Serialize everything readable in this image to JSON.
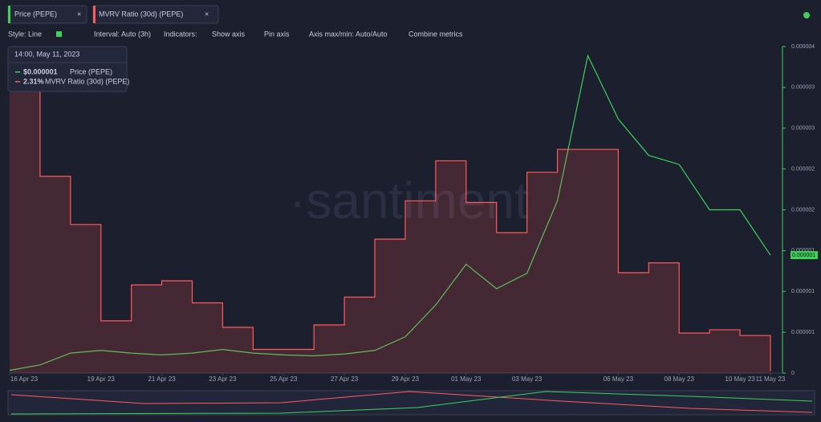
{
  "tabs": [
    "Price (PEPE)",
    "MVRV Ratio (30d) (PEPE)"
  ],
  "toolbar": {
    "style": "Style: Line",
    "interval": "Interval: Auto (3h)",
    "indicators": "Indicators:",
    "show_axis": "Show axis",
    "pin_axis": "Pin axis",
    "axis_range": "Axis max/min: Auto/Auto",
    "combine": "Combine metrics"
  },
  "tooltip": {
    "time": "14:00, May 11, 2023",
    "rows": [
      {
        "value": "$0.000001",
        "name": "Price (PEPE)"
      },
      {
        "value": "2.31%",
        "name": "MVRV Ratio (30d) (PEPE)"
      }
    ]
  },
  "watermark": "·santiment",
  "chart_data": {
    "type": "line",
    "x": [
      "2023-04-16",
      "2023-04-17",
      "2023-04-18",
      "2023-04-19",
      "2023-04-20",
      "2023-04-21",
      "2023-04-22",
      "2023-04-23",
      "2023-04-24",
      "2023-04-25",
      "2023-04-26",
      "2023-04-27",
      "2023-04-28",
      "2023-04-29",
      "2023-04-30",
      "2023-05-01",
      "2023-05-02",
      "2023-05-03",
      "2023-05-04",
      "2023-05-05",
      "2023-05-06",
      "2023-05-07",
      "2023-05-08",
      "2023-05-09",
      "2023-05-10",
      "2023-05-11"
    ],
    "xlim": [
      "2023-04-16",
      "2023-05-11"
    ],
    "xticks": [
      {
        "value": "2023-04-16",
        "label": "16 Apr 23"
      },
      {
        "value": "2023-04-19",
        "label": "19 Apr 23"
      },
      {
        "value": "2023-04-21",
        "label": "21 Apr 23"
      },
      {
        "value": "2023-04-23",
        "label": "23 Apr 23"
      },
      {
        "value": "2023-04-25",
        "label": "25 Apr 23"
      },
      {
        "value": "2023-04-27",
        "label": "27 Apr 23"
      },
      {
        "value": "2023-04-29",
        "label": "29 Apr 23"
      },
      {
        "value": "2023-05-01",
        "label": "01 May 23"
      },
      {
        "value": "2023-05-03",
        "label": "03 May 23"
      },
      {
        "value": "2023-05-06",
        "label": "06 May 23"
      },
      {
        "value": "2023-05-08",
        "label": "08 May 23"
      },
      {
        "value": "2023-05-10",
        "label": "10 May 23"
      },
      {
        "value": "2023-05-11",
        "label": "11 May 23"
      }
    ],
    "ylim": [
      1e-07,
      3.7e-06
    ],
    "yticks": [
      {
        "value": 1e-07,
        "label": "0"
      },
      {
        "value": 5.5e-07,
        "label": "0.000001"
      },
      {
        "value": 1e-06,
        "label": "0.000001"
      },
      {
        "value": 1.45e-06,
        "label": "0.000001"
      },
      {
        "value": 1.9e-06,
        "label": "0.000002"
      },
      {
        "value": 2.35e-06,
        "label": "0.000002"
      },
      {
        "value": 2.8e-06,
        "label": "0.000003"
      },
      {
        "value": 3.25e-06,
        "label": "0.000003"
      },
      {
        "value": 3.7e-06,
        "label": "0.000004"
      }
    ],
    "y2lim": [
      0,
      400
    ],
    "last_price_label": "0.000001",
    "series": [
      {
        "name": "Price (PEPE)",
        "color": "#3fd15a",
        "values": [
          1.3e-07,
          1.9e-07,
          3.2e-07,
          3.5e-07,
          3.2e-07,
          3e-07,
          3.2e-07,
          3.6e-07,
          3.2e-07,
          3e-07,
          2.9e-07,
          3.1e-07,
          3.5e-07,
          5e-07,
          8.5e-07,
          1.3e-06,
          1.03e-06,
          1.2e-06,
          2e-06,
          3.6e-06,
          2.9e-06,
          2.5e-06,
          2.4e-06,
          1.9e-06,
          1.9e-06,
          1.4e-06
        ]
      },
      {
        "name": "MVRV Ratio (30d) (PEPE)",
        "color": "#ff5b5b",
        "axis": "y2",
        "values": [
          378,
          241,
          182,
          64,
          108,
          113,
          86,
          56,
          29,
          29,
          59,
          93,
          164,
          211,
          260,
          209,
          172,
          246,
          274,
          274,
          123,
          135,
          49,
          53,
          46,
          2.31
        ]
      }
    ]
  }
}
